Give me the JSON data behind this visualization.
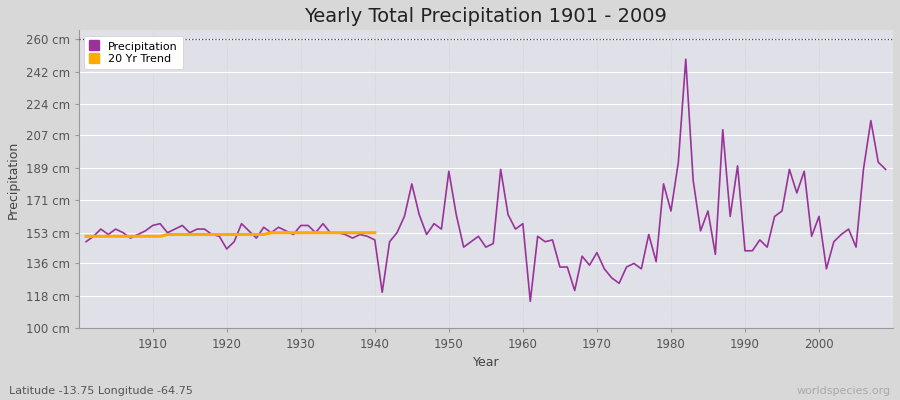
{
  "title": "Yearly Total Precipitation 1901 - 2009",
  "xlabel": "Year",
  "ylabel": "Precipitation",
  "subtitle": "Latitude -13.75 Longitude -64.75",
  "watermark": "worldspecies.org",
  "years": [
    1901,
    1902,
    1903,
    1904,
    1905,
    1906,
    1907,
    1908,
    1909,
    1910,
    1911,
    1912,
    1913,
    1914,
    1915,
    1916,
    1917,
    1918,
    1919,
    1920,
    1921,
    1922,
    1923,
    1924,
    1925,
    1926,
    1927,
    1928,
    1929,
    1930,
    1931,
    1932,
    1933,
    1934,
    1935,
    1936,
    1937,
    1938,
    1939,
    1940,
    1941,
    1942,
    1943,
    1944,
    1945,
    1946,
    1947,
    1948,
    1949,
    1950,
    1951,
    1952,
    1953,
    1954,
    1955,
    1956,
    1957,
    1958,
    1959,
    1960,
    1961,
    1962,
    1963,
    1964,
    1965,
    1966,
    1967,
    1968,
    1969,
    1970,
    1971,
    1972,
    1973,
    1974,
    1975,
    1976,
    1977,
    1978,
    1979,
    1980,
    1981,
    1982,
    1983,
    1984,
    1985,
    1986,
    1987,
    1988,
    1989,
    1990,
    1991,
    1992,
    1993,
    1994,
    1995,
    1996,
    1997,
    1998,
    1999,
    2000,
    2001,
    2002,
    2003,
    2004,
    2005,
    2006,
    2007,
    2008,
    2009
  ],
  "precipitation": [
    148,
    151,
    155,
    152,
    155,
    153,
    150,
    152,
    154,
    157,
    158,
    153,
    155,
    157,
    153,
    155,
    155,
    152,
    151,
    144,
    148,
    158,
    154,
    150,
    156,
    153,
    156,
    154,
    152,
    157,
    157,
    153,
    158,
    153,
    153,
    152,
    150,
    152,
    151,
    149,
    120,
    148,
    153,
    162,
    180,
    163,
    152,
    158,
    155,
    187,
    163,
    145,
    148,
    151,
    145,
    147,
    188,
    163,
    155,
    158,
    115,
    151,
    148,
    149,
    134,
    134,
    121,
    140,
    135,
    142,
    133,
    128,
    125,
    134,
    136,
    133,
    152,
    137,
    180,
    165,
    192,
    249,
    182,
    154,
    165,
    141,
    210,
    162,
    190,
    143,
    143,
    149,
    145,
    162,
    165,
    188,
    175,
    187,
    151,
    162,
    133,
    148,
    152,
    155,
    145,
    188,
    215,
    192,
    188
  ],
  "trend_seg1_years": [
    1901,
    1902,
    1903,
    1904,
    1905,
    1906,
    1907,
    1908,
    1909,
    1910,
    1911,
    1912,
    1913,
    1914,
    1915,
    1916,
    1917,
    1918,
    1919,
    1920,
    1921,
    1922,
    1923,
    1924,
    1925,
    1926,
    1927,
    1928,
    1929,
    1930,
    1931,
    1932,
    1933,
    1934,
    1935,
    1936,
    1937,
    1938,
    1939,
    1940
  ],
  "trend_seg1_vals": [
    151,
    151,
    151,
    151,
    151,
    151,
    151,
    151,
    151,
    151,
    151,
    152,
    152,
    152,
    152,
    152,
    152,
    152,
    152,
    152,
    152,
    152,
    152,
    152,
    152,
    153,
    153,
    153,
    153,
    153,
    153,
    153,
    153,
    153,
    153,
    153,
    153,
    153,
    153,
    153
  ],
  "ylim": [
    100,
    265
  ],
  "xlim": [
    1900,
    2010
  ],
  "ytick_values": [
    100,
    118,
    136,
    153,
    171,
    189,
    207,
    224,
    242,
    260
  ],
  "ytick_labels": [
    "100 cm",
    "118 cm",
    "136 cm",
    "153 cm",
    "171 cm",
    "189 cm",
    "207 cm",
    "224 cm",
    "242 cm",
    "260 cm"
  ],
  "xtick_values": [
    1910,
    1920,
    1930,
    1940,
    1950,
    1960,
    1970,
    1980,
    1990,
    2000
  ],
  "precip_color": "#993399",
  "trend_color": "#ffaa00",
  "fig_bg_color": "#d8d8d8",
  "plot_bg_color": "#e0e0e8",
  "hgrid_color": "#ffffff",
  "vgrid_color": "#cccccc",
  "title_fontsize": 14,
  "label_fontsize": 9,
  "tick_fontsize": 8.5
}
